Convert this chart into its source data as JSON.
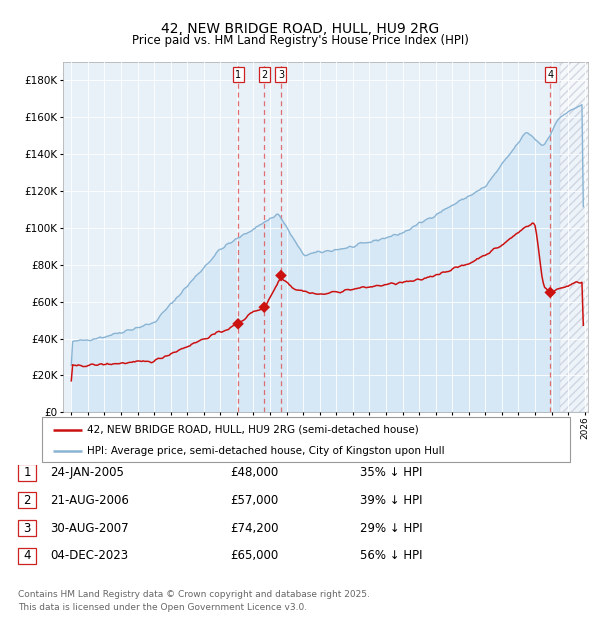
{
  "title": "42, NEW BRIDGE ROAD, HULL, HU9 2RG",
  "subtitle": "Price paid vs. HM Land Registry's House Price Index (HPI)",
  "legend_line1": "42, NEW BRIDGE ROAD, HULL, HU9 2RG (semi-detached house)",
  "legend_line2": "HPI: Average price, semi-detached house, City of Kingston upon Hull",
  "footer_line1": "Contains HM Land Registry data © Crown copyright and database right 2025.",
  "footer_line2": "This data is licensed under the Open Government Licence v3.0.",
  "hpi_color": "#8ab4d4",
  "hpi_fill": "#d6e8f5",
  "price_color": "#cc1111",
  "background_color": "#ffffff",
  "plot_bg_color": "#e8f0f8",
  "grid_color": "#ffffff",
  "transactions": [
    {
      "label": "1",
      "date_num": 2005.07,
      "price": 48000,
      "desc": "24-JAN-2005",
      "amount": "£48,000",
      "pct": "35% ↓ HPI"
    },
    {
      "label": "2",
      "date_num": 2006.65,
      "price": 57000,
      "desc": "21-AUG-2006",
      "amount": "£57,000",
      "pct": "39% ↓ HPI"
    },
    {
      "label": "3",
      "date_num": 2007.66,
      "price": 74200,
      "desc": "30-AUG-2007",
      "amount": "£74,200",
      "pct": "29% ↓ HPI"
    },
    {
      "label": "4",
      "date_num": 2023.92,
      "price": 65000,
      "desc": "04-DEC-2023",
      "amount": "£65,000",
      "pct": "56% ↓ HPI"
    }
  ],
  "ylim": [
    0,
    190000
  ],
  "yticks": [
    0,
    20000,
    40000,
    60000,
    80000,
    100000,
    120000,
    140000,
    160000,
    180000
  ],
  "xlim": [
    1994.5,
    2026.2
  ],
  "hatch_x_start": 2024.5,
  "hatch_x_end": 2026.5,
  "hpi_seed": 42,
  "price_seed": 42
}
